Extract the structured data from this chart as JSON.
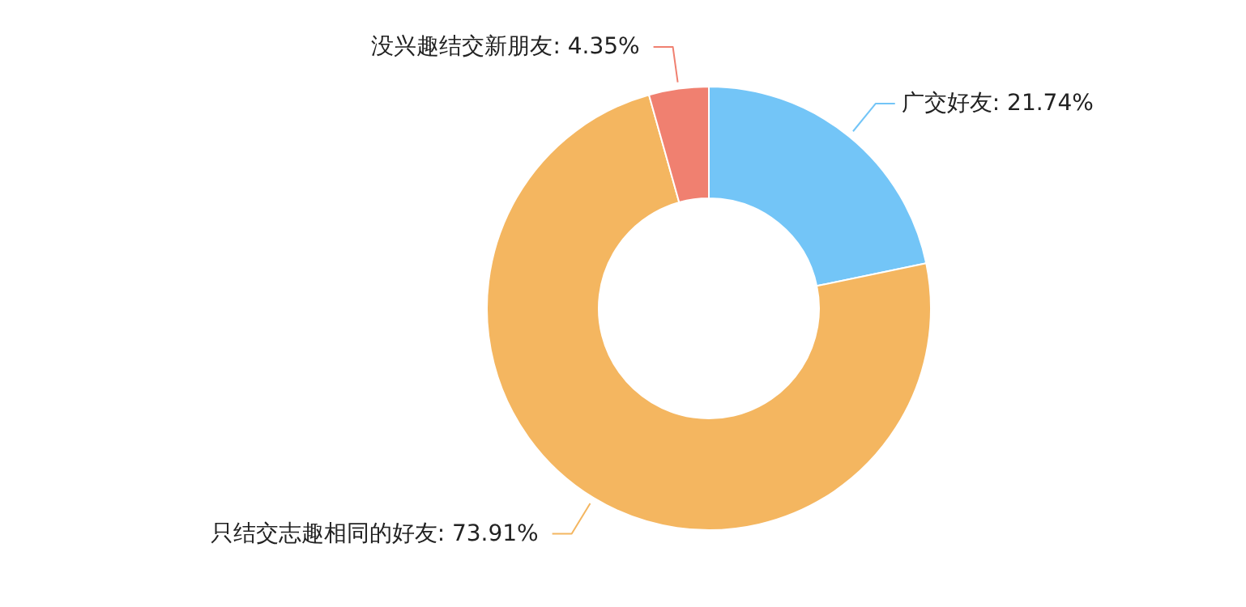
{
  "chart_data": {
    "type": "donut",
    "categories": [
      "广交好友",
      "只结交志趣相同的好友",
      "没兴趣结交新朋友"
    ],
    "values": [
      21.74,
      73.91,
      4.35
    ],
    "colors": [
      "#73c5f7",
      "#f4b660",
      "#f08070"
    ],
    "value_labels": [
      ": 21.74%",
      ": 73.91%",
      ": 4.35%"
    ]
  }
}
